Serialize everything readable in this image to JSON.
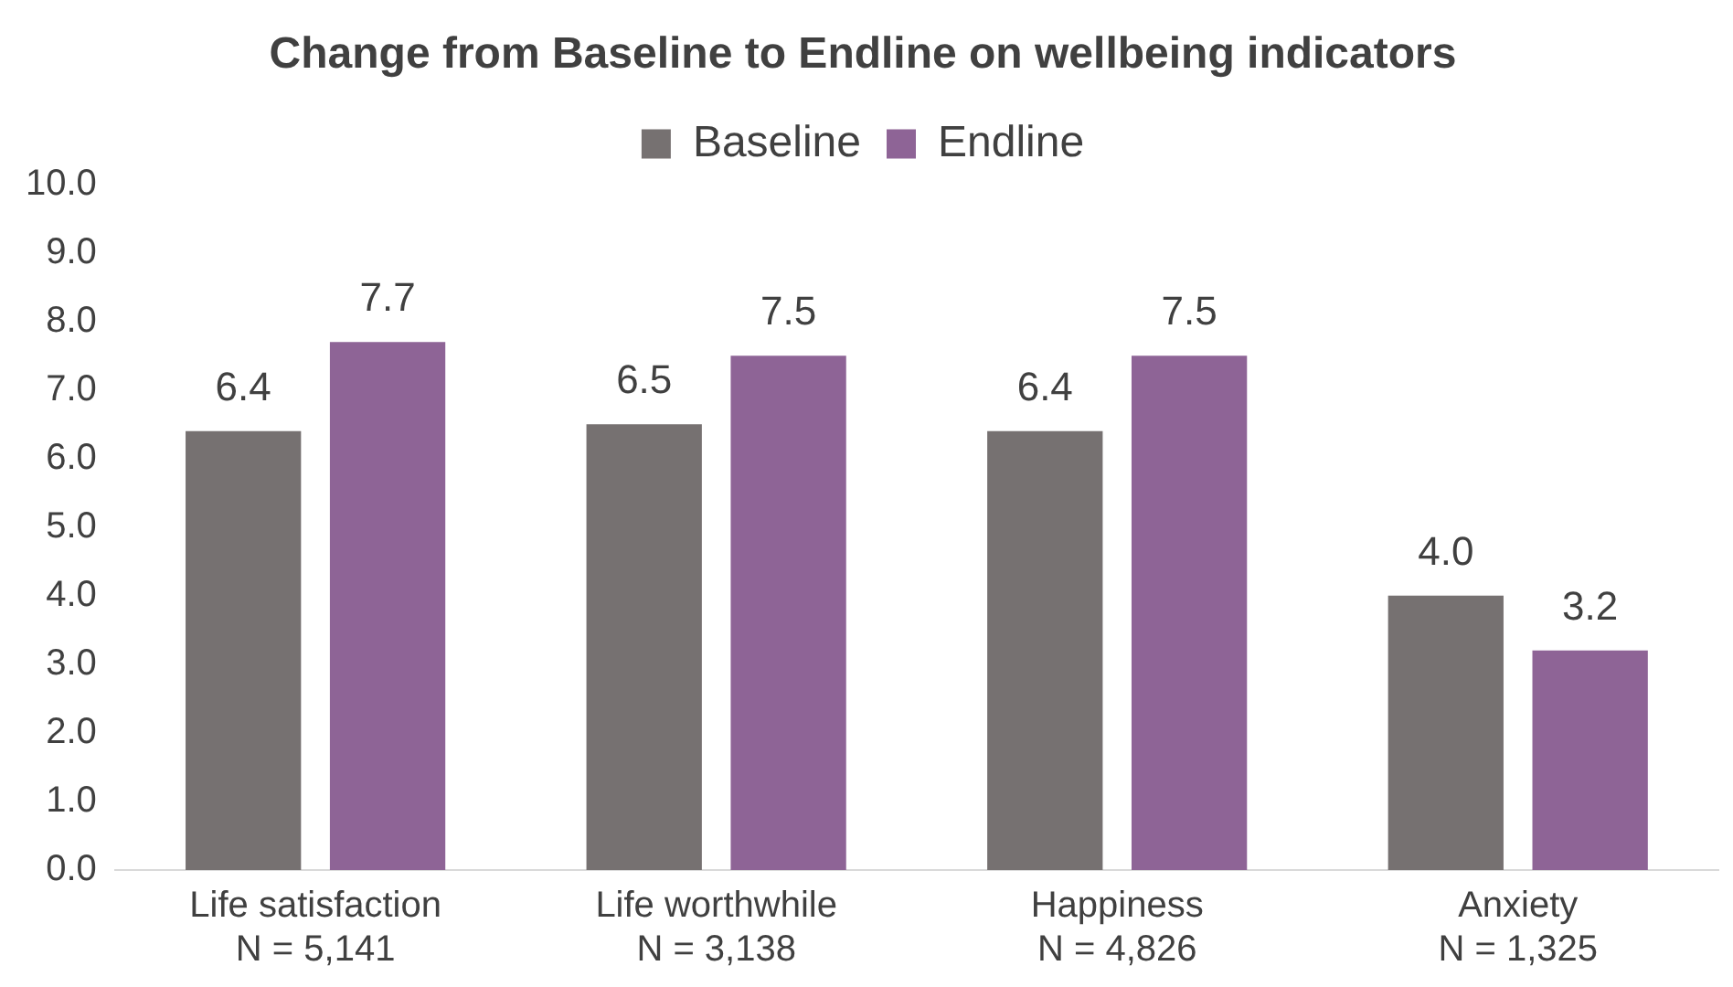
{
  "chart_data": {
    "type": "bar",
    "title": "Change from Baseline to Endline on wellbeing indicators",
    "categories": [
      "Life satisfaction\nN = 5,141",
      "Life worthwhile\nN = 3,138",
      "Happiness\nN = 4,826",
      "Anxiety\nN = 1,325"
    ],
    "series": [
      {
        "name": "Baseline",
        "color": "#767171",
        "values": [
          6.4,
          6.5,
          6.4,
          4.0
        ],
        "value_labels": [
          "6.4",
          "6.5",
          "6.4",
          "4.0"
        ]
      },
      {
        "name": "Endline",
        "color": "#8e6496",
        "values": [
          7.7,
          7.5,
          7.5,
          3.2
        ],
        "value_labels": [
          "7.7",
          "7.5",
          "7.5",
          "3.2"
        ]
      }
    ],
    "ylim": [
      0,
      10
    ],
    "yticks": [
      {
        "value": 0,
        "label": "0.0"
      },
      {
        "value": 1,
        "label": "1.0"
      },
      {
        "value": 2,
        "label": "2.0"
      },
      {
        "value": 3,
        "label": "3.0"
      },
      {
        "value": 4,
        "label": "4.0"
      },
      {
        "value": 5,
        "label": "5.0"
      },
      {
        "value": 6,
        "label": "6.0"
      },
      {
        "value": 7,
        "label": "7.0"
      },
      {
        "value": 8,
        "label": "8.0"
      },
      {
        "value": 9,
        "label": "9.0"
      },
      {
        "value": 10,
        "label": "10.0"
      }
    ],
    "grid": false,
    "legend": "top"
  }
}
